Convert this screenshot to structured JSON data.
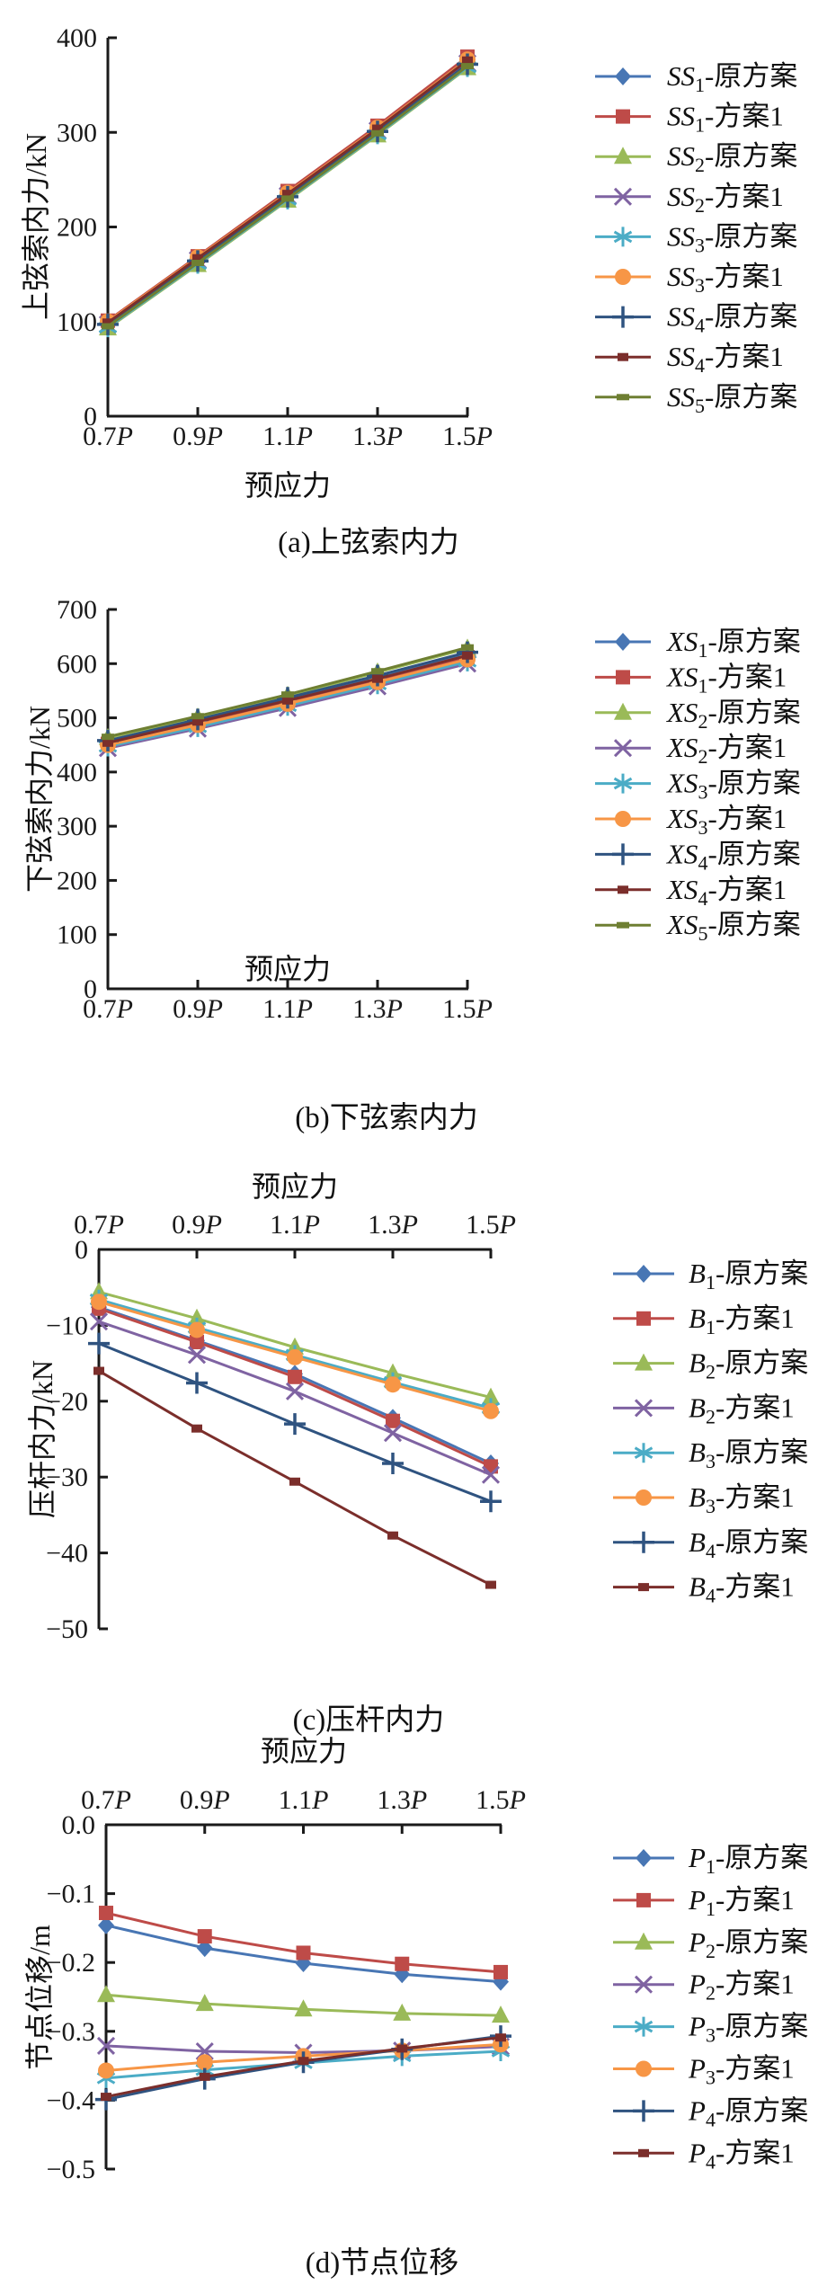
{
  "figure": {
    "background": "#ffffff",
    "axis_color": "#1a1a1a",
    "palette": {
      "blue": "#4876B4",
      "red": "#BE4B48",
      "green": "#9ABA58",
      "purple": "#7F63A2",
      "cyan": "#4BACC6",
      "orange": "#F79646",
      "navy": "#2F5380",
      "maroon": "#7B2E2B",
      "olive": "#6E7F32"
    }
  },
  "chart_data": [
    {
      "id": "a",
      "type": "line",
      "title": "(a)上弦索内力",
      "x_axis_title": "预应力",
      "y_axis_title": "上弦索内力/kN",
      "x_axis_position": "bottom",
      "legend_position": "right",
      "grid": false,
      "x_tick_labels": [
        "0.7P",
        "0.9P",
        "1.1P",
        "1.3P",
        "1.5P"
      ],
      "y_ticks": [
        400,
        300,
        200,
        100,
        0
      ],
      "y_tick_labels": [
        "400",
        "300",
        "200",
        "100",
        "0"
      ],
      "ylim": [
        0,
        400
      ],
      "series": [
        {
          "label": "SS1-原方案",
          "label_parts": {
            "base": "SS",
            "sub": "1",
            "rest": "-原方案"
          },
          "marker": "diamond",
          "color": "blue",
          "values": [
            98,
            166,
            234,
            303,
            374
          ]
        },
        {
          "label": "SS1-方案1",
          "label_parts": {
            "base": "SS",
            "sub": "1",
            "rest": "-方案1"
          },
          "marker": "square",
          "color": "red",
          "values": [
            101,
            169,
            238,
            307,
            380
          ]
        },
        {
          "label": "SS2-原方案",
          "label_parts": {
            "base": "SS",
            "sub": "2",
            "rest": "-原方案"
          },
          "marker": "triangle",
          "color": "green",
          "values": [
            93,
            160,
            228,
            297,
            368
          ]
        },
        {
          "label": "SS2-方案1",
          "label_parts": {
            "base": "SS",
            "sub": "2",
            "rest": "-方案1"
          },
          "marker": "x",
          "color": "purple",
          "values": [
            97,
            165,
            233,
            302,
            373
          ]
        },
        {
          "label": "SS3-原方案",
          "label_parts": {
            "base": "SS",
            "sub": "3",
            "rest": "-原方案"
          },
          "marker": "asterisk",
          "color": "cyan",
          "values": [
            94,
            161,
            229,
            298,
            369
          ]
        },
        {
          "label": "SS3-方案1",
          "label_parts": {
            "base": "SS",
            "sub": "3",
            "rest": "-方案1"
          },
          "marker": "circle",
          "color": "orange",
          "values": [
            100,
            168,
            236,
            305,
            377
          ]
        },
        {
          "label": "SS4-原方案",
          "label_parts": {
            "base": "SS",
            "sub": "4",
            "rest": "-原方案"
          },
          "marker": "plus",
          "color": "navy",
          "values": [
            97,
            164,
            232,
            301,
            372
          ]
        },
        {
          "label": "SS4-方案1",
          "label_parts": {
            "base": "SS",
            "sub": "4",
            "rest": "-方案1"
          },
          "marker": "sdash",
          "color": "maroon",
          "values": [
            99,
            167,
            235,
            304,
            376
          ]
        },
        {
          "label": "SS5-原方案",
          "label_parts": {
            "base": "SS",
            "sub": "5",
            "rest": "-原方案"
          },
          "marker": "sdash2",
          "color": "olive",
          "values": [
            95,
            162,
            230,
            299,
            370
          ]
        }
      ]
    },
    {
      "id": "b",
      "type": "line",
      "title": "(b)下弦索内力",
      "x_axis_title": "预应力",
      "y_axis_title": "下弦索内力/kN",
      "x_axis_position": "bottom",
      "legend_position": "right",
      "grid": false,
      "x_tick_labels": [
        "0.7P",
        "0.9P",
        "1.1P",
        "1.3P",
        "1.5P"
      ],
      "y_ticks": [
        700,
        600,
        500,
        400,
        300,
        200,
        100,
        0
      ],
      "y_tick_labels": [
        "700",
        "600",
        "500",
        "400",
        "300",
        "200",
        "100",
        "0"
      ],
      "ylim": [
        0,
        700
      ],
      "series": [
        {
          "label": "XS1-原方案",
          "label_parts": {
            "base": "XS",
            "sub": "1",
            "rest": "-原方案"
          },
          "marker": "diamond",
          "color": "blue",
          "values": [
            456,
            495,
            535,
            576,
            620
          ]
        },
        {
          "label": "XS1-方案1",
          "label_parts": {
            "base": "XS",
            "sub": "1",
            "rest": "-方案1"
          },
          "marker": "square",
          "color": "red",
          "values": [
            452,
            490,
            529,
            569,
            612
          ]
        },
        {
          "label": "XS2-原方案",
          "label_parts": {
            "base": "XS",
            "sub": "2",
            "rest": "-原方案"
          },
          "marker": "triangle",
          "color": "green",
          "values": [
            463,
            501,
            541,
            584,
            628
          ]
        },
        {
          "label": "XS2-方案1",
          "label_parts": {
            "base": "XS",
            "sub": "2",
            "rest": "-方案1"
          },
          "marker": "x",
          "color": "purple",
          "values": [
            444,
            480,
            518,
            558,
            600
          ]
        },
        {
          "label": "XS3-原方案",
          "label_parts": {
            "base": "XS",
            "sub": "3",
            "rest": "-原方案"
          },
          "marker": "asterisk",
          "color": "cyan",
          "values": [
            447,
            483,
            522,
            562,
            604
          ]
        },
        {
          "label": "XS3-方案1",
          "label_parts": {
            "base": "XS",
            "sub": "3",
            "rest": "-方案1"
          },
          "marker": "circle",
          "color": "orange",
          "values": [
            450,
            487,
            526,
            566,
            608
          ]
        },
        {
          "label": "XS4-原方案",
          "label_parts": {
            "base": "XS",
            "sub": "4",
            "rest": "-原方案"
          },
          "marker": "plus",
          "color": "navy",
          "values": [
            458,
            497,
            537,
            578,
            621
          ]
        },
        {
          "label": "XS4-方案1",
          "label_parts": {
            "base": "XS",
            "sub": "4",
            "rest": "-方案1"
          },
          "marker": "sdash",
          "color": "maroon",
          "values": [
            454,
            493,
            532,
            572,
            615
          ]
        },
        {
          "label": "XS5-原方案",
          "label_parts": {
            "base": "XS",
            "sub": "5",
            "rest": "-原方案"
          },
          "marker": "sdash2",
          "color": "olive",
          "values": [
            465,
            503,
            543,
            586,
            630
          ]
        }
      ]
    },
    {
      "id": "c",
      "type": "line",
      "title": "(c)压杆内力",
      "x_axis_title": "预应力",
      "y_axis_title": "压杆内力/kN",
      "x_axis_position": "top",
      "legend_position": "right",
      "grid": false,
      "x_tick_labels": [
        "0.7P",
        "0.9P",
        "1.1P",
        "1.3P",
        "1.5P"
      ],
      "y_ticks": [
        0,
        -10,
        -20,
        -30,
        -40,
        -50
      ],
      "y_tick_labels": [
        "0",
        "−10",
        "−20",
        "−30",
        "−40",
        "−50"
      ],
      "ylim": [
        -50,
        0
      ],
      "series": [
        {
          "label": "B1-原方案",
          "label_parts": {
            "base": "B",
            "sub": "1",
            "rest": "-原方案"
          },
          "marker": "diamond",
          "color": "blue",
          "values": [
            -7.6,
            -12.0,
            -16.4,
            -22.2,
            -28.2
          ]
        },
        {
          "label": "B1-方案1",
          "label_parts": {
            "base": "B",
            "sub": "1",
            "rest": "-方案1"
          },
          "marker": "square",
          "color": "red",
          "values": [
            -7.8,
            -12.2,
            -16.8,
            -22.6,
            -28.6
          ]
        },
        {
          "label": "B2-原方案",
          "label_parts": {
            "base": "B",
            "sub": "2",
            "rest": "-原方案"
          },
          "marker": "triangle",
          "color": "green",
          "values": [
            -5.6,
            -9.1,
            -12.9,
            -16.3,
            -19.5
          ]
        },
        {
          "label": "B2-方案1",
          "label_parts": {
            "base": "B",
            "sub": "2",
            "rest": "-方案1"
          },
          "marker": "x",
          "color": "purple",
          "values": [
            -9.5,
            -13.9,
            -18.7,
            -24.2,
            -29.7
          ]
        },
        {
          "label": "B3-原方案",
          "label_parts": {
            "base": "B",
            "sub": "3",
            "rest": "-原方案"
          },
          "marker": "asterisk",
          "color": "cyan",
          "values": [
            -6.6,
            -10.3,
            -13.9,
            -17.5,
            -20.9
          ]
        },
        {
          "label": "B3-方案1",
          "label_parts": {
            "base": "B",
            "sub": "3",
            "rest": "-方案1"
          },
          "marker": "circle",
          "color": "orange",
          "values": [
            -6.9,
            -10.6,
            -14.2,
            -17.8,
            -21.3
          ]
        },
        {
          "label": "B4-原方案",
          "label_parts": {
            "base": "B",
            "sub": "4",
            "rest": "-原方案"
          },
          "marker": "plus",
          "color": "navy",
          "values": [
            -12.4,
            -17.6,
            -23.0,
            -28.2,
            -33.2
          ]
        },
        {
          "label": "B4-方案1",
          "label_parts": {
            "base": "B",
            "sub": "4",
            "rest": "-方案1"
          },
          "marker": "sdash",
          "color": "maroon",
          "values": [
            -16.0,
            -23.6,
            -30.6,
            -37.7,
            -44.2
          ]
        }
      ]
    },
    {
      "id": "d",
      "type": "line",
      "title": "(d)节点位移",
      "x_axis_title": "预应力",
      "y_axis_title": "节点位移/m",
      "x_axis_position": "top",
      "legend_position": "right",
      "grid": false,
      "x_tick_labels": [
        "0.7P",
        "0.9P",
        "1.1P",
        "1.3P",
        "1.5P"
      ],
      "y_ticks": [
        0,
        -0.1,
        -0.2,
        -0.3,
        -0.4,
        -0.5
      ],
      "y_tick_labels": [
        "0.0",
        "−0.1",
        "−0.2",
        "−0.3",
        "−0.4",
        "−0.5"
      ],
      "ylim": [
        -0.5,
        0
      ],
      "series": [
        {
          "label": "P1-原方案",
          "label_parts": {
            "base": "P",
            "sub": "1",
            "rest": "-原方案"
          },
          "marker": "diamond",
          "color": "blue",
          "values": [
            -0.146,
            -0.179,
            -0.201,
            -0.217,
            -0.228
          ]
        },
        {
          "label": "P1-方案1",
          "label_parts": {
            "base": "P",
            "sub": "1",
            "rest": "-方案1"
          },
          "marker": "square",
          "color": "red",
          "values": [
            -0.128,
            -0.162,
            -0.186,
            -0.202,
            -0.214
          ]
        },
        {
          "label": "P2-原方案",
          "label_parts": {
            "base": "P",
            "sub": "2",
            "rest": "-原方案"
          },
          "marker": "triangle",
          "color": "green",
          "values": [
            -0.247,
            -0.26,
            -0.268,
            -0.274,
            -0.277
          ]
        },
        {
          "label": "P2-方案1",
          "label_parts": {
            "base": "P",
            "sub": "2",
            "rest": "-方案1"
          },
          "marker": "x",
          "color": "purple",
          "values": [
            -0.321,
            -0.329,
            -0.331,
            -0.328,
            -0.322
          ]
        },
        {
          "label": "P3-原方案",
          "label_parts": {
            "base": "P",
            "sub": "3",
            "rest": "-原方案"
          },
          "marker": "asterisk",
          "color": "cyan",
          "values": [
            -0.368,
            -0.356,
            -0.346,
            -0.336,
            -0.329
          ]
        },
        {
          "label": "P3-方案1",
          "label_parts": {
            "base": "P",
            "sub": "3",
            "rest": "-方案1"
          },
          "marker": "circle",
          "color": "orange",
          "values": [
            -0.357,
            -0.345,
            -0.336,
            -0.328,
            -0.319
          ]
        },
        {
          "label": "P4-原方案",
          "label_parts": {
            "base": "P",
            "sub": "4",
            "rest": "-原方案"
          },
          "marker": "plus",
          "color": "navy",
          "values": [
            -0.399,
            -0.369,
            -0.345,
            -0.326,
            -0.307
          ]
        },
        {
          "label": "P4-方案1",
          "label_parts": {
            "base": "P",
            "sub": "4",
            "rest": "-方案1"
          },
          "marker": "sdash",
          "color": "maroon",
          "values": [
            -0.395,
            -0.366,
            -0.343,
            -0.325,
            -0.309
          ]
        }
      ]
    }
  ]
}
